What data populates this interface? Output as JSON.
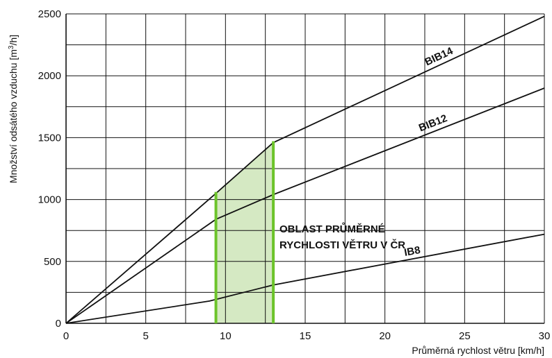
{
  "chart_data": {
    "type": "line",
    "title": "",
    "xlabel": "Průměrná rychlost větru [km/h]",
    "ylabel_parts": [
      "Množství odsátého vzduchu [m",
      "3",
      "/h]"
    ],
    "xlim": [
      0,
      30
    ],
    "ylim": [
      0,
      2500
    ],
    "x_ticks": [
      0,
      5,
      10,
      15,
      20,
      25,
      30
    ],
    "y_ticks": [
      0,
      500,
      1000,
      1500,
      2000,
      2500
    ],
    "x_tick_labels": [
      "0",
      "5",
      "10",
      "15",
      "20",
      "25",
      "30"
    ],
    "y_tick_labels": [
      "0",
      "500",
      "1000",
      "1500",
      "2000",
      "2500"
    ],
    "x_grid_step": 2.5,
    "y_grid_step": 250,
    "grid": true,
    "series": [
      {
        "name": "BIB14",
        "x": [
          0,
          9.4,
          13,
          30
        ],
        "y": [
          0,
          1050,
          1460,
          2480
        ]
      },
      {
        "name": "BIB12",
        "x": [
          0,
          9.4,
          13,
          30
        ],
        "y": [
          0,
          840,
          1040,
          1900
        ]
      },
      {
        "name": "IB8",
        "x": [
          0,
          9,
          13,
          30
        ],
        "y": [
          0,
          180,
          310,
          720
        ]
      }
    ],
    "highlight_band": {
      "x_range": [
        9.4,
        13
      ],
      "label_lines": [
        "OBLAST PRŮMĚRNÉ",
        "RYCHLOSTI VĚTRU V ČR"
      ],
      "fill_color": "#d5e9c3",
      "edge_color": "#6cc42a"
    },
    "colors": {
      "line": "#111111",
      "grid": "#111111"
    }
  }
}
